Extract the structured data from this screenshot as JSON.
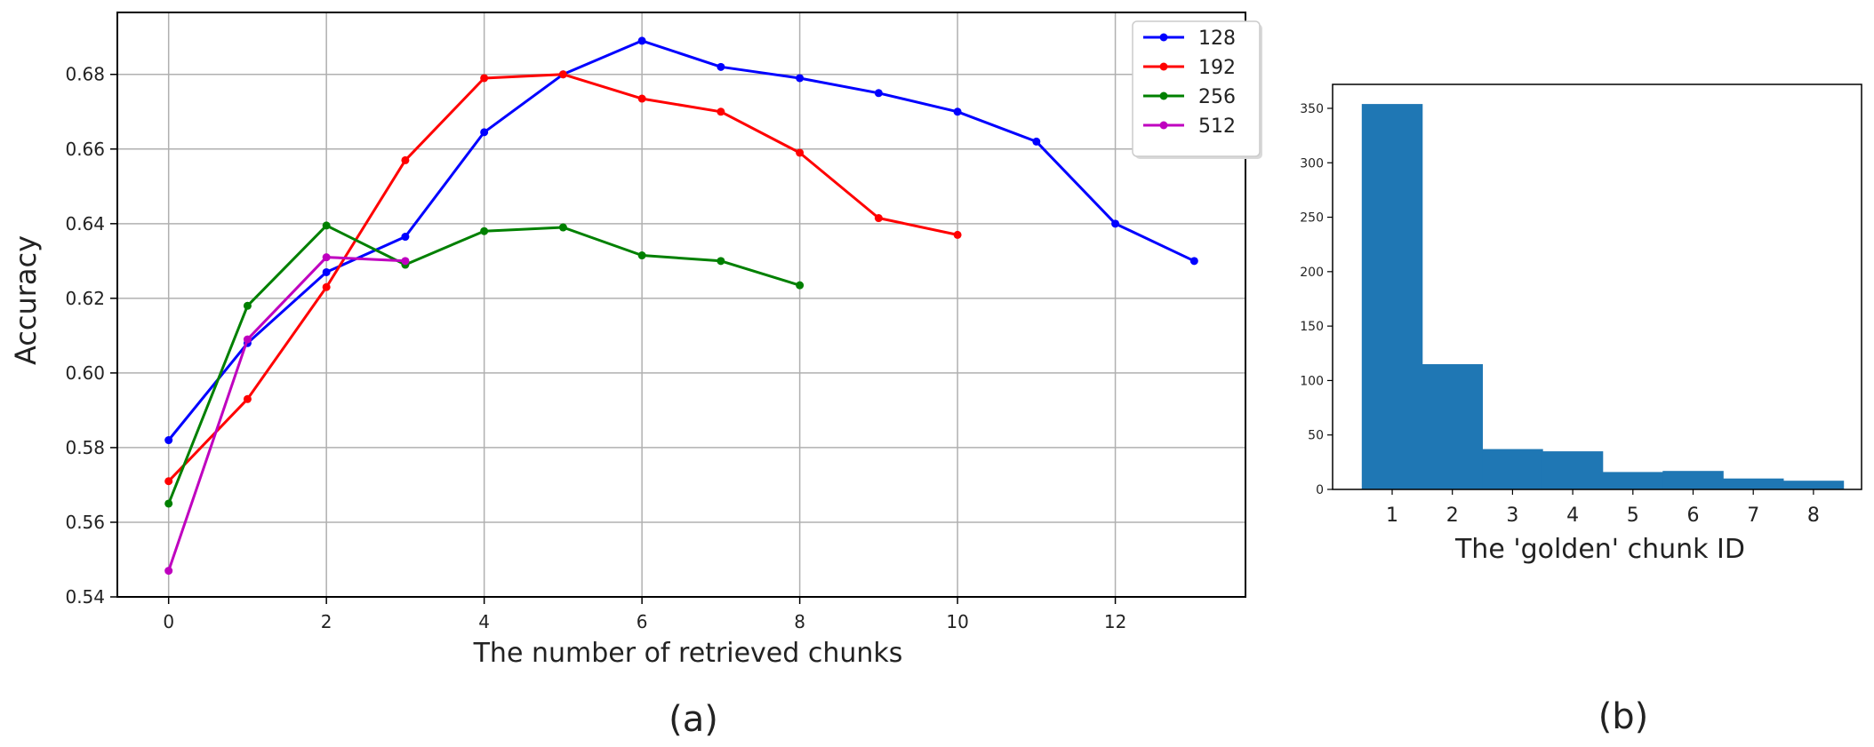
{
  "chart_data": [
    {
      "type": "line",
      "panel_label": "(a)",
      "title": "",
      "xlabel": "The number of retrieved chunks",
      "ylabel": "Accuracy",
      "xlim": [
        -0.65,
        13.65
      ],
      "ylim": [
        0.54,
        0.6966
      ],
      "xticks": [
        0,
        2,
        4,
        6,
        8,
        10,
        12
      ],
      "yticks": [
        0.54,
        0.56,
        0.58,
        0.6,
        0.62,
        0.64,
        0.66,
        0.68
      ],
      "ytick_labels": [
        "0.54",
        "0.56",
        "0.58",
        "0.60",
        "0.62",
        "0.64",
        "0.66",
        "0.68"
      ],
      "grid": true,
      "legend_position": "top-right",
      "series": [
        {
          "name": "128",
          "color": "#0000ff",
          "x": [
            0,
            1,
            2,
            3,
            4,
            5,
            6,
            7,
            8,
            9,
            10,
            11,
            12,
            13
          ],
          "y": [
            0.582,
            0.608,
            0.627,
            0.6365,
            0.6645,
            0.68,
            0.689,
            0.682,
            0.679,
            0.675,
            0.67,
            0.662,
            0.64,
            0.63
          ]
        },
        {
          "name": "192",
          "color": "#ff0000",
          "x": [
            0,
            1,
            2,
            3,
            4,
            5,
            6,
            7,
            8,
            9,
            10
          ],
          "y": [
            0.571,
            0.593,
            0.623,
            0.657,
            0.679,
            0.68,
            0.6735,
            0.67,
            0.659,
            0.6415,
            0.637
          ]
        },
        {
          "name": "256",
          "color": "#008000",
          "x": [
            0,
            1,
            2,
            3,
            4,
            5,
            6,
            7,
            8
          ],
          "y": [
            0.565,
            0.618,
            0.6395,
            0.629,
            0.638,
            0.639,
            0.6315,
            0.63,
            0.6235
          ]
        },
        {
          "name": "512",
          "color": "#bf00bf",
          "x": [
            0,
            1,
            2,
            3
          ],
          "y": [
            0.547,
            0.609,
            0.631,
            0.63
          ]
        }
      ]
    },
    {
      "type": "bar",
      "panel_label": "(b)",
      "title": "",
      "xlabel": "The 'golden' chunk ID",
      "ylabel": "",
      "categories": [
        "1",
        "2",
        "3",
        "4",
        "5",
        "6",
        "7",
        "8"
      ],
      "values": [
        354,
        115,
        37,
        35,
        16,
        17,
        10,
        8
      ],
      "ylim": [
        0,
        372
      ],
      "yticks": [
        0,
        50,
        100,
        150,
        200,
        250,
        300,
        350
      ],
      "grid": false,
      "color": "#1f77b4"
    }
  ]
}
